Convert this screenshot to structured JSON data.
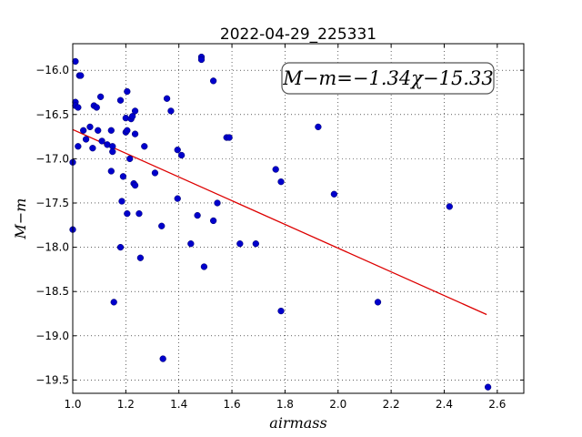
{
  "chart_data": {
    "type": "scatter",
    "title": "2022-04-29_225331",
    "xlabel": "airmass",
    "ylabel": "M−m",
    "xlim": [
      1.0,
      2.7
    ],
    "ylim": [
      -19.65,
      -15.7
    ],
    "x_ticks": [
      1.0,
      1.2,
      1.4,
      1.6,
      1.8,
      2.0,
      2.2,
      2.4,
      2.6
    ],
    "x_tick_labels": [
      "1.0",
      "1.2",
      "1.4",
      "1.6",
      "1.8",
      "2.0",
      "2.2",
      "2.4",
      "2.6"
    ],
    "y_ticks": [
      -16.0,
      -16.5,
      -17.0,
      -17.5,
      -18.0,
      -18.5,
      -19.0,
      -19.5
    ],
    "y_tick_labels": [
      "−16.0",
      "−16.5",
      "−17.0",
      "−17.5",
      "−18.0",
      "−18.5",
      "−19.0",
      "−19.5"
    ],
    "grid": true,
    "annotation": "M−m=−1.34χ−15.33",
    "point_color": "#0000cc",
    "fit_color": "#dd0000",
    "fit": {
      "slope": -1.34,
      "intercept": -15.33,
      "x_range": [
        1.0,
        2.56
      ]
    },
    "points": [
      [
        1.0,
        -17.04
      ],
      [
        1.0,
        -17.8
      ],
      [
        1.01,
        -15.9
      ],
      [
        1.01,
        -16.36
      ],
      [
        1.01,
        -16.4
      ],
      [
        1.02,
        -16.42
      ],
      [
        1.02,
        -16.86
      ],
      [
        1.025,
        -16.06
      ],
      [
        1.03,
        -16.06
      ],
      [
        1.04,
        -16.68
      ],
      [
        1.05,
        -16.78
      ],
      [
        1.065,
        -16.64
      ],
      [
        1.075,
        -16.88
      ],
      [
        1.08,
        -16.4
      ],
      [
        1.09,
        -16.42
      ],
      [
        1.095,
        -16.68
      ],
      [
        1.105,
        -16.3
      ],
      [
        1.11,
        -16.8
      ],
      [
        1.13,
        -16.84
      ],
      [
        1.145,
        -16.68
      ],
      [
        1.145,
        -17.14
      ],
      [
        1.15,
        -16.86
      ],
      [
        1.15,
        -16.92
      ],
      [
        1.155,
        -18.62
      ],
      [
        1.18,
        -16.34
      ],
      [
        1.18,
        -18.0
      ],
      [
        1.185,
        -17.48
      ],
      [
        1.19,
        -17.2
      ],
      [
        1.2,
        -16.7
      ],
      [
        1.205,
        -16.68
      ],
      [
        1.2,
        -16.54
      ],
      [
        1.205,
        -16.24
      ],
      [
        1.205,
        -17.62
      ],
      [
        1.215,
        -17.0
      ],
      [
        1.22,
        -16.55
      ],
      [
        1.225,
        -16.52
      ],
      [
        1.23,
        -17.28
      ],
      [
        1.235,
        -17.3
      ],
      [
        1.235,
        -16.46
      ],
      [
        1.235,
        -16.72
      ],
      [
        1.25,
        -17.62
      ],
      [
        1.255,
        -18.12
      ],
      [
        1.27,
        -16.86
      ],
      [
        1.31,
        -17.16
      ],
      [
        1.335,
        -17.76
      ],
      [
        1.34,
        -19.26
      ],
      [
        1.355,
        -16.32
      ],
      [
        1.37,
        -16.46
      ],
      [
        1.395,
        -16.9
      ],
      [
        1.395,
        -17.45
      ],
      [
        1.41,
        -16.96
      ],
      [
        1.445,
        -17.96
      ],
      [
        1.47,
        -17.64
      ],
      [
        1.485,
        -15.85
      ],
      [
        1.485,
        -15.88
      ],
      [
        1.495,
        -18.22
      ],
      [
        1.53,
        -16.12
      ],
      [
        1.53,
        -17.7
      ],
      [
        1.545,
        -17.5
      ],
      [
        1.58,
        -16.76
      ],
      [
        1.59,
        -16.76
      ],
      [
        1.63,
        -17.96
      ],
      [
        1.69,
        -17.96
      ],
      [
        1.765,
        -17.12
      ],
      [
        1.785,
        -17.26
      ],
      [
        1.785,
        -18.72
      ],
      [
        1.925,
        -16.64
      ],
      [
        1.985,
        -17.4
      ],
      [
        2.15,
        -18.62
      ],
      [
        2.42,
        -17.54
      ],
      [
        2.565,
        -19.58
      ]
    ]
  }
}
